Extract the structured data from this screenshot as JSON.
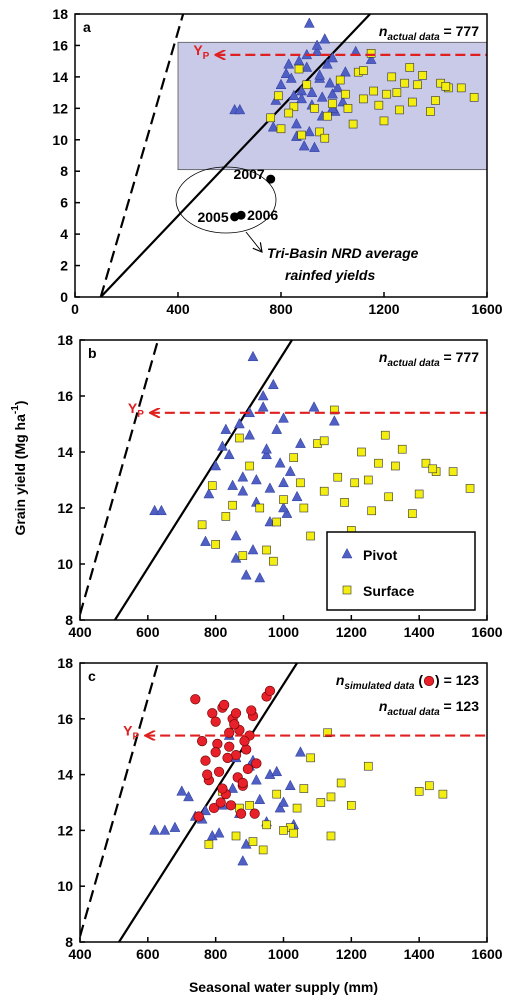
{
  "chart_data": [
    {
      "type": "scatter",
      "letter": "a",
      "xlim": [
        0,
        1600
      ],
      "ylim": [
        0,
        18
      ],
      "xticks": [
        0,
        400,
        800,
        1200,
        1600
      ],
      "yticks": [
        0,
        2,
        4,
        6,
        8,
        10,
        12,
        14,
        16,
        18
      ],
      "shaded": {
        "x": [
          400,
          1600
        ],
        "y": [
          8.1,
          16.2
        ],
        "color": "#c9c9e8"
      },
      "lines": [
        {
          "style": "dashed",
          "x": [
            100,
            420
          ],
          "y": [
            0,
            18
          ]
        },
        {
          "style": "solid",
          "x": [
            100,
            1146
          ],
          "y": [
            0,
            18
          ]
        }
      ],
      "yp": {
        "value": 15.4,
        "x": [
          545,
          1600
        ],
        "main": "Y",
        "sub": "P",
        "color": "#e02020"
      },
      "n_texts": [
        {
          "main": "n",
          "sub": "actual data",
          "post": " = 777"
        }
      ],
      "annotation": [
        "Tri-Basin NRD average",
        "rainfed yields"
      ],
      "series": [
        {
          "marker": "triangle",
          "color": "#4f5fc4",
          "x": [
            800,
            820,
            850,
            870,
            880,
            900,
            910,
            920,
            940,
            950,
            960,
            980,
            1000,
            1020,
            1040,
            860,
            890,
            930,
            970,
            1010,
            780,
            840,
            900,
            950,
            1000,
            620,
            640,
            770,
            920,
            1090,
            1150,
            1050,
            880,
            940,
            990,
            830,
            910,
            960,
            860,
            1000
          ],
          "values": [
            13.5,
            14.2,
            12.8,
            15.0,
            13.1,
            14.6,
            17.4,
            12.2,
            15.6,
            13.9,
            11.5,
            14.8,
            12.9,
            13.3,
            12.4,
            10.2,
            9.6,
            9.5,
            16.4,
            11.8,
            12.5,
            13.9,
            15.4,
            14.1,
            12.0,
            11.9,
            11.9,
            10.8,
            13.0,
            15.6,
            15.1,
            14.3,
            12.6,
            16.0,
            13.6,
            14.8,
            10.5,
            12.7,
            11.0,
            15.2
          ]
        },
        {
          "marker": "square",
          "color": "#f4ee10",
          "x": [
            760,
            800,
            850,
            900,
            950,
            1000,
            1050,
            1100,
            1150,
            1200,
            1250,
            1300,
            1350,
            1400,
            1450,
            1500,
            1550,
            1420,
            1380,
            1330,
            1280,
            1230,
            1180,
            1120,
            1080,
            1030,
            980,
            930,
            880,
            830,
            790,
            1210,
            1160,
            1260,
            1310,
            1440,
            1120,
            970,
            870,
            1060
          ],
          "values": [
            11.4,
            10.7,
            12.1,
            13.5,
            10.5,
            12.3,
            12.9,
            14.3,
            15.5,
            11.2,
            13.0,
            14.6,
            14.1,
            12.5,
            13.3,
            13.3,
            12.7,
            13.6,
            11.8,
            13.5,
            13.6,
            14.0,
            12.2,
            12.6,
            11.0,
            13.8,
            11.5,
            12.0,
            10.3,
            11.7,
            12.8,
            12.9,
            13.1,
            11.9,
            12.4,
            13.4,
            14.4,
            10.1,
            14.5,
            12.0
          ]
        },
        {
          "marker": "dot",
          "color": "#000000",
          "x": [
            620,
            645,
            760
          ],
          "values": [
            5.1,
            5.2,
            7.5
          ],
          "labels": [
            "2005",
            "2006",
            "2007"
          ]
        }
      ]
    },
    {
      "type": "scatter",
      "letter": "b",
      "xlim": [
        400,
        1600
      ],
      "ylim": [
        8,
        18
      ],
      "xticks": [
        400,
        600,
        800,
        1000,
        1200,
        1400,
        1600
      ],
      "yticks": [
        8,
        10,
        12,
        14,
        16,
        18
      ],
      "ylabel": "Grain yield (Mg ha",
      "ylabel_sup": "-1",
      "ylabel_end": ")",
      "lines": [
        {
          "style": "dashed",
          "x": [
            400,
            630
          ],
          "y": [
            8.2,
            18
          ]
        },
        {
          "style": "solid",
          "x": [
            503,
            1025
          ],
          "y": [
            8,
            18
          ]
        }
      ],
      "yp": {
        "value": 15.4,
        "x": [
          606,
          1600
        ],
        "main": "Y",
        "sub": "P",
        "color": "#e02020"
      },
      "n_texts": [
        {
          "main": "n",
          "sub": "actual data",
          "post": " = 777"
        }
      ],
      "legend": "lower right",
      "series": [
        {
          "name": "Pivot",
          "marker": "triangle",
          "color": "#4f5fc4",
          "x": [
            800,
            820,
            850,
            870,
            880,
            900,
            910,
            920,
            940,
            950,
            960,
            980,
            1000,
            1020,
            1040,
            860,
            890,
            930,
            970,
            1010,
            780,
            840,
            900,
            950,
            1000,
            620,
            640,
            770,
            920,
            1090,
            1150,
            1050,
            880,
            940,
            990,
            830,
            910,
            960,
            860,
            1000
          ],
          "values": [
            13.5,
            14.2,
            12.8,
            15.0,
            13.1,
            14.6,
            17.4,
            12.2,
            15.6,
            13.9,
            11.5,
            14.8,
            12.9,
            13.3,
            12.4,
            10.2,
            9.6,
            9.5,
            16.4,
            11.8,
            12.5,
            13.9,
            15.4,
            14.1,
            12.0,
            11.9,
            11.9,
            10.8,
            13.0,
            15.6,
            15.1,
            14.3,
            12.6,
            16.0,
            13.6,
            14.8,
            10.5,
            12.7,
            11.0,
            15.2
          ]
        },
        {
          "name": "Surface",
          "marker": "square",
          "color": "#f4ee10",
          "x": [
            760,
            800,
            850,
            900,
            950,
            1000,
            1050,
            1100,
            1150,
            1200,
            1250,
            1300,
            1350,
            1400,
            1450,
            1500,
            1550,
            1420,
            1380,
            1330,
            1280,
            1230,
            1180,
            1120,
            1080,
            1030,
            980,
            930,
            880,
            830,
            790,
            1210,
            1160,
            1260,
            1310,
            1440,
            1120,
            970,
            870,
            1060
          ],
          "values": [
            11.4,
            10.7,
            12.1,
            13.5,
            10.5,
            12.3,
            12.9,
            14.3,
            15.5,
            11.2,
            13.0,
            14.6,
            14.1,
            12.5,
            13.3,
            13.3,
            12.7,
            13.6,
            11.8,
            13.5,
            13.6,
            14.0,
            12.2,
            12.6,
            11.0,
            13.8,
            11.5,
            12.0,
            10.3,
            11.7,
            12.8,
            12.9,
            13.1,
            11.9,
            12.4,
            13.4,
            14.4,
            10.1,
            14.5,
            12.0
          ]
        }
      ]
    },
    {
      "type": "scatter",
      "letter": "c",
      "xlim": [
        400,
        1600
      ],
      "ylim": [
        8,
        18
      ],
      "xticks": [
        400,
        600,
        800,
        1000,
        1200,
        1400,
        1600
      ],
      "yticks": [
        8,
        10,
        12,
        14,
        16,
        18
      ],
      "xlabel": "Seasonal water supply (mm)",
      "lines": [
        {
          "style": "dashed",
          "x": [
            400,
            630
          ],
          "y": [
            8.2,
            18
          ]
        },
        {
          "style": "solid",
          "x": [
            515,
            1040
          ],
          "y": [
            8,
            18
          ]
        }
      ],
      "yp": {
        "value": 15.4,
        "x": [
          592,
          1600
        ],
        "main": "Y",
        "sub": "P",
        "color": "#e02020"
      },
      "n_texts": [
        {
          "main": "n",
          "sub": "simulated data",
          "pre": " (",
          "post": ") = 123",
          "marker_series": 2
        },
        {
          "main": "n",
          "sub": "actual data",
          "post": " = 123"
        }
      ],
      "series": [
        {
          "marker": "triangle",
          "color": "#4f5fc4",
          "x": [
            620,
            650,
            720,
            760,
            790,
            820,
            850,
            870,
            900,
            930,
            960,
            990,
            1020,
            1050,
            700,
            740,
            780,
            810,
            880,
            910,
            950,
            1000,
            860,
            840,
            680,
            1030,
            920,
            980,
            770,
            890
          ],
          "values": [
            12.0,
            12.0,
            13.2,
            12.4,
            11.8,
            12.9,
            13.5,
            12.6,
            14.3,
            13.1,
            14.0,
            12.8,
            13.6,
            14.8,
            13.4,
            12.5,
            13.9,
            11.9,
            10.9,
            14.5,
            12.3,
            13.0,
            14.6,
            15.4,
            12.1,
            12.2,
            13.8,
            14.1,
            12.7,
            11.5
          ]
        },
        {
          "marker": "square",
          "color": "#f4ee10",
          "x": [
            780,
            820,
            860,
            900,
            940,
            980,
            1020,
            1040,
            1080,
            1130,
            1140,
            1170,
            1200,
            1250,
            1400,
            1430,
            1470,
            1030,
            950,
            1110,
            870,
            1000,
            1060,
            910,
            1140
          ],
          "values": [
            11.5,
            13.4,
            11.8,
            12.9,
            11.3,
            13.3,
            12.1,
            12.8,
            14.6,
            15.5,
            13.2,
            13.7,
            12.9,
            14.3,
            13.4,
            13.6,
            13.3,
            11.9,
            12.2,
            13.0,
            12.8,
            12.0,
            13.5,
            11.6,
            11.8
          ]
        },
        {
          "marker": "circle",
          "color": "#e8202a",
          "x": [
            740,
            760,
            770,
            780,
            790,
            800,
            810,
            820,
            830,
            840,
            850,
            860,
            870,
            880,
            890,
            900,
            910,
            920,
            950,
            960,
            750,
            775,
            795,
            805,
            815,
            825,
            835,
            845,
            855,
            865,
            875,
            885,
            895,
            905,
            915,
            800,
            820,
            840,
            860,
            880
          ],
          "values": [
            16.7,
            15.2,
            14.5,
            13.8,
            16.2,
            15.9,
            14.1,
            16.4,
            13.3,
            15.0,
            16.0,
            14.7,
            15.6,
            13.6,
            14.9,
            15.4,
            16.1,
            14.4,
            16.8,
            17.0,
            12.5,
            14.0,
            12.8,
            15.1,
            13.0,
            16.5,
            14.6,
            12.9,
            15.8,
            13.9,
            12.6,
            15.2,
            14.2,
            16.3,
            12.6,
            14.8,
            13.5,
            15.5,
            16.2,
            13.7
          ]
        }
      ]
    }
  ]
}
